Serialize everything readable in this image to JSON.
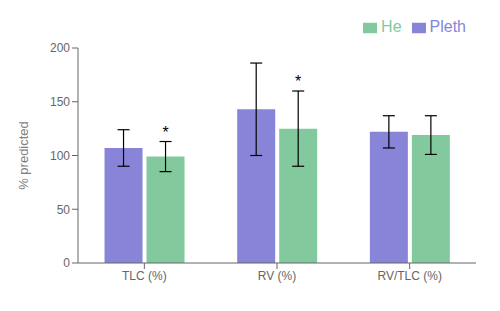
{
  "chart_data": {
    "type": "bar",
    "ylabel": "% predicted",
    "categories": [
      "TLC (%)",
      "RV (%)",
      "RV/TLC (%)"
    ],
    "series": [
      {
        "name": "Pleth",
        "color": "#8884d8",
        "values": [
          107,
          143,
          122
        ],
        "errors": [
          17,
          43,
          15
        ]
      },
      {
        "name": "He",
        "color": "#82ca9d",
        "values": [
          99,
          125,
          119
        ],
        "errors": [
          14,
          35,
          18
        ]
      }
    ],
    "annotations": [
      {
        "text": "*",
        "category": "TLC (%)",
        "series": "He"
      },
      {
        "text": "*",
        "category": "RV (%)",
        "series": "He"
      }
    ],
    "ylim": [
      0,
      200
    ],
    "yticks": [
      0,
      50,
      100,
      150,
      200
    ],
    "grid": false,
    "legend": "upper right"
  }
}
